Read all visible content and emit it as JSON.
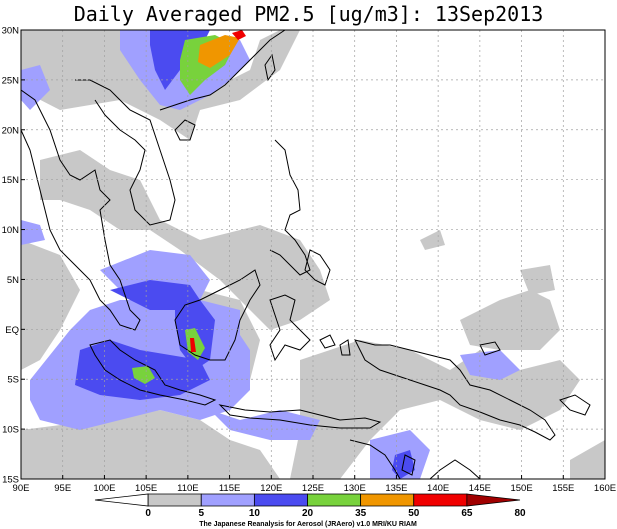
{
  "title": "Daily Averaged PM2.5 [ug/m3]: 13Sep2013",
  "map": {
    "lon_range": [
      90,
      160
    ],
    "lat_range": [
      -15,
      30
    ],
    "x_tick_labels": [
      "90E",
      "95E",
      "100E",
      "105E",
      "110E",
      "115E",
      "120E",
      "125E",
      "130E",
      "135E",
      "140E",
      "145E",
      "150E",
      "155E",
      "160E"
    ],
    "y_tick_labels": [
      "30N",
      "25N",
      "20N",
      "15N",
      "10N",
      "5N",
      "EQ",
      "5S",
      "10S",
      "15S"
    ],
    "grid": "dotted"
  },
  "colorbar": {
    "ticks": [
      "0",
      "5",
      "10",
      "20",
      "35",
      "50",
      "65",
      "80"
    ],
    "colors": [
      "#ffffff",
      "#c8c8c8",
      "#a0a0ff",
      "#4b4bf0",
      "#78d23c",
      "#f09600",
      "#f00000",
      "#a00000"
    ],
    "credit": "The Japanese Reanalysis for Aerosol (JRAero) v1.0 MRI/KU RIAM"
  }
}
